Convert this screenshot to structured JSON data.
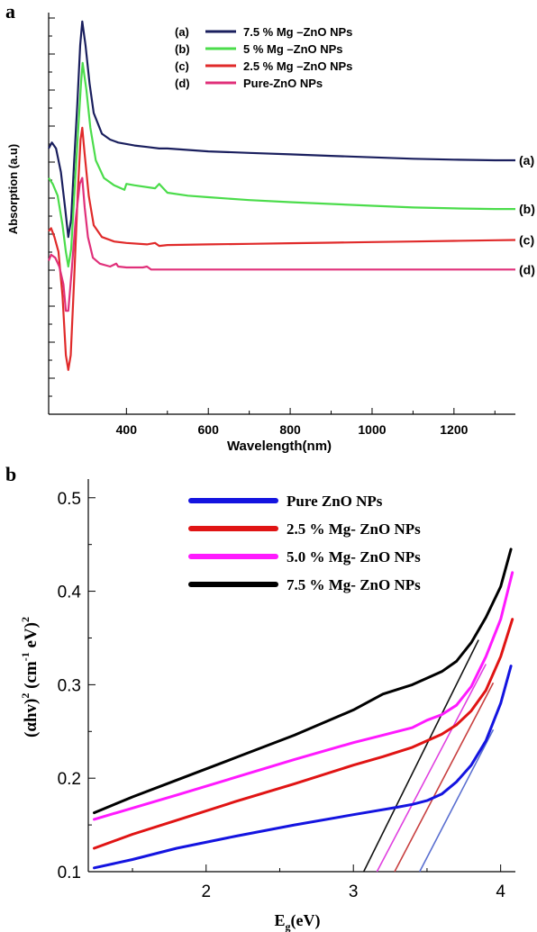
{
  "chart_data": [
    {
      "panel_label": "a",
      "type": "line",
      "xlabel": "Wavelength(nm)",
      "ylabel": "Absorption (a.u)",
      "xlim": [
        210,
        1350
      ],
      "x_ticks": [
        400,
        600,
        800,
        1000,
        1200
      ],
      "y_ticks_labeled": false,
      "grid": false,
      "legend_position": "top-center",
      "series": [
        {
          "name": "7.5 % Mg –ZnO NPs",
          "legend_tag": "(a)",
          "end_label": "(a)",
          "color": "#1a1f5e",
          "x": [
            210,
            218,
            228,
            240,
            250,
            258,
            265,
            272,
            280,
            287,
            292,
            300,
            310,
            320,
            340,
            360,
            380,
            400,
            420,
            450,
            480,
            500,
            550,
            600,
            700,
            800,
            900,
            1000,
            1100,
            1200,
            1300,
            1350
          ],
          "y": [
            0.9,
            0.92,
            0.9,
            0.82,
            0.7,
            0.6,
            0.66,
            0.85,
            1.05,
            1.25,
            1.33,
            1.25,
            1.12,
            1.02,
            0.95,
            0.93,
            0.92,
            0.915,
            0.91,
            0.905,
            0.9,
            0.9,
            0.895,
            0.89,
            0.885,
            0.88,
            0.875,
            0.87,
            0.865,
            0.862,
            0.86,
            0.86
          ]
        },
        {
          "name": "5 % Mg –ZnO NPs",
          "legend_tag": "(b)",
          "end_label": "(b)",
          "color": "#4bdc4b",
          "x": [
            210,
            220,
            232,
            244,
            252,
            258,
            265,
            273,
            282,
            289,
            293,
            302,
            312,
            325,
            345,
            370,
            395,
            400,
            420,
            470,
            480,
            500,
            550,
            600,
            700,
            800,
            900,
            1000,
            1100,
            1200,
            1300,
            1350
          ],
          "y": [
            0.8,
            0.78,
            0.74,
            0.64,
            0.55,
            0.5,
            0.56,
            0.75,
            0.96,
            1.12,
            1.19,
            1.1,
            0.97,
            0.86,
            0.8,
            0.775,
            0.76,
            0.78,
            0.775,
            0.765,
            0.78,
            0.75,
            0.74,
            0.735,
            0.725,
            0.718,
            0.712,
            0.706,
            0.7,
            0.697,
            0.695,
            0.695
          ]
        },
        {
          "name": "2.5 % Mg –ZnO NPs",
          "legend_tag": "(c)",
          "end_label": "(c)",
          "color": "#e02a2a",
          "x": [
            210,
            216,
            224,
            234,
            244,
            252,
            258,
            264,
            272,
            281,
            288,
            292,
            298,
            308,
            320,
            340,
            370,
            400,
            450,
            470,
            480,
            500,
            600,
            700,
            800,
            900,
            1000,
            1100,
            1200,
            1300,
            1350
          ],
          "y": [
            0.62,
            0.63,
            0.6,
            0.55,
            0.4,
            0.2,
            0.15,
            0.2,
            0.45,
            0.75,
            0.93,
            0.97,
            0.88,
            0.74,
            0.64,
            0.6,
            0.585,
            0.58,
            0.575,
            0.58,
            0.57,
            0.573,
            0.575,
            0.577,
            0.579,
            0.581,
            0.583,
            0.585,
            0.587,
            0.589,
            0.59
          ]
        },
        {
          "name": "Pure-ZnO NPs",
          "legend_tag": "(d)",
          "end_label": "(d)",
          "color": "#e0307a",
          "x": [
            210,
            216,
            226,
            236,
            246,
            252,
            258,
            266,
            276,
            286,
            292,
            298,
            306,
            318,
            335,
            360,
            375,
            380,
            400,
            440,
            450,
            460,
            500,
            600,
            700,
            800,
            900,
            1000,
            1100,
            1200,
            1300,
            1350
          ],
          "y": [
            0.52,
            0.54,
            0.53,
            0.5,
            0.44,
            0.35,
            0.35,
            0.48,
            0.66,
            0.78,
            0.8,
            0.7,
            0.6,
            0.53,
            0.51,
            0.5,
            0.51,
            0.5,
            0.497,
            0.497,
            0.5,
            0.49,
            0.49,
            0.49,
            0.49,
            0.49,
            0.49,
            0.49,
            0.49,
            0.49,
            0.49,
            0.49
          ]
        }
      ]
    },
    {
      "panel_label": "b",
      "type": "line",
      "xlabel": "E",
      "xlabel_sub": "g",
      "xlabel_tail": "(eV)",
      "ylabel": "(αhv)² (cm⁻¹ eV)²",
      "ylabel_parts": [
        "(αhv)",
        "2",
        " (cm",
        "-1",
        " eV)",
        "2"
      ],
      "xlim": [
        1.2,
        4.1
      ],
      "ylim": [
        0.1,
        0.52
      ],
      "x_ticks": [
        2,
        3,
        4
      ],
      "x_tick_labels": [
        "2",
        "3",
        "4"
      ],
      "y_ticks": [
        0.1,
        0.2,
        0.3,
        0.4,
        0.5
      ],
      "y_tick_labels": [
        "0.1",
        "0.2",
        "0.3",
        "0.4",
        "0.5"
      ],
      "grid": false,
      "legend_position": "top-center",
      "series": [
        {
          "name": "Pure ZnO NPs",
          "color": "#1414e0",
          "x": [
            1.24,
            1.5,
            1.8,
            2.2,
            2.6,
            3.0,
            3.3,
            3.4,
            3.5,
            3.6,
            3.7,
            3.8,
            3.9,
            4.0,
            4.07
          ],
          "y": [
            0.104,
            0.113,
            0.125,
            0.138,
            0.15,
            0.161,
            0.169,
            0.172,
            0.176,
            0.183,
            0.196,
            0.214,
            0.24,
            0.28,
            0.32
          ]
        },
        {
          "name": "2.5 % Mg- ZnO NPs",
          "color": "#e01414",
          "x": [
            1.24,
            1.5,
            1.8,
            2.2,
            2.6,
            3.0,
            3.2,
            3.4,
            3.6,
            3.7,
            3.8,
            3.9,
            4.0,
            4.08
          ],
          "y": [
            0.125,
            0.14,
            0.155,
            0.175,
            0.194,
            0.214,
            0.223,
            0.233,
            0.247,
            0.257,
            0.272,
            0.294,
            0.33,
            0.37
          ]
        },
        {
          "name": "5.0 % Mg- ZnO NPs",
          "color": "#ff1aff",
          "x": [
            1.24,
            1.5,
            1.8,
            2.2,
            2.6,
            3.0,
            3.2,
            3.4,
            3.5,
            3.6,
            3.7,
            3.8,
            3.9,
            4.0,
            4.08
          ],
          "y": [
            0.156,
            0.168,
            0.182,
            0.201,
            0.22,
            0.238,
            0.246,
            0.254,
            0.262,
            0.268,
            0.278,
            0.298,
            0.33,
            0.37,
            0.42
          ]
        },
        {
          "name": "7.5 % Mg- ZnO NPs",
          "color": "#000000",
          "x": [
            1.24,
            1.5,
            1.8,
            2.2,
            2.6,
            3.0,
            3.2,
            3.4,
            3.6,
            3.7,
            3.8,
            3.9,
            4.0,
            4.07
          ],
          "y": [
            0.163,
            0.18,
            0.198,
            0.222,
            0.246,
            0.273,
            0.29,
            0.3,
            0.314,
            0.325,
            0.345,
            0.372,
            0.405,
            0.445
          ]
        }
      ],
      "tangent_lines": [
        {
          "color": "#5a6fd0",
          "x": [
            3.45,
            3.95
          ],
          "y": [
            0.1,
            0.252
          ]
        },
        {
          "color": "#c84040",
          "x": [
            3.28,
            3.95
          ],
          "y": [
            0.1,
            0.302
          ]
        },
        {
          "color": "#e040e0",
          "x": [
            3.16,
            3.9
          ],
          "y": [
            0.1,
            0.322
          ]
        },
        {
          "color": "#111111",
          "x": [
            3.07,
            3.85
          ],
          "y": [
            0.1,
            0.348
          ]
        }
      ]
    }
  ]
}
